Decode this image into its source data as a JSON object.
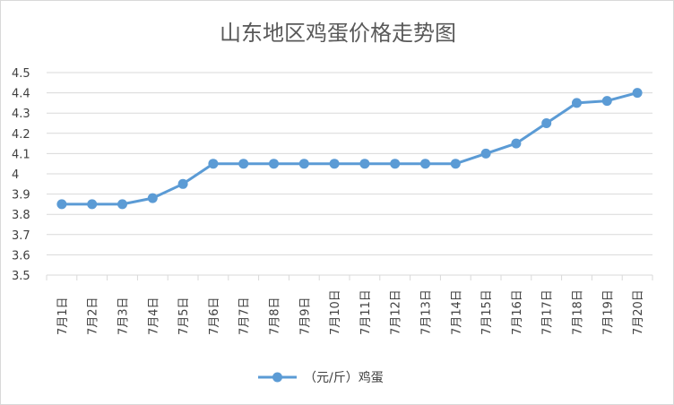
{
  "chart_data": {
    "type": "line",
    "title": "山东地区鸡蛋价格走势图",
    "categories": [
      "7月1日",
      "7月2日",
      "7月3日",
      "7月4日",
      "7月5日",
      "7月6日",
      "7月7日",
      "7月8日",
      "7月9日",
      "7月10日",
      "7月11日",
      "7月12日",
      "7月13日",
      "7月14日",
      "7月15日",
      "7月16日",
      "7月17日",
      "7月18日",
      "7月19日",
      "7月20日"
    ],
    "series": [
      {
        "name": "（元/斤）鸡蛋",
        "values": [
          3.85,
          3.85,
          3.85,
          3.88,
          3.95,
          4.05,
          4.05,
          4.05,
          4.05,
          4.05,
          4.05,
          4.05,
          4.05,
          4.05,
          4.1,
          4.15,
          4.25,
          4.35,
          4.36,
          4.4
        ]
      }
    ],
    "xlabel": "",
    "ylabel": "",
    "ylim": [
      3.5,
      4.5
    ],
    "yticks": [
      "3.5",
      "3.6",
      "3.7",
      "3.8",
      "3.9",
      "4",
      "4.1",
      "4.2",
      "4.3",
      "4.4",
      "4.5"
    ],
    "grid": true,
    "legend_position": "bottom",
    "colors": {
      "series": "#5b9bd5",
      "grid": "#d9d9d9",
      "text": "#404040",
      "title": "#595959"
    }
  }
}
